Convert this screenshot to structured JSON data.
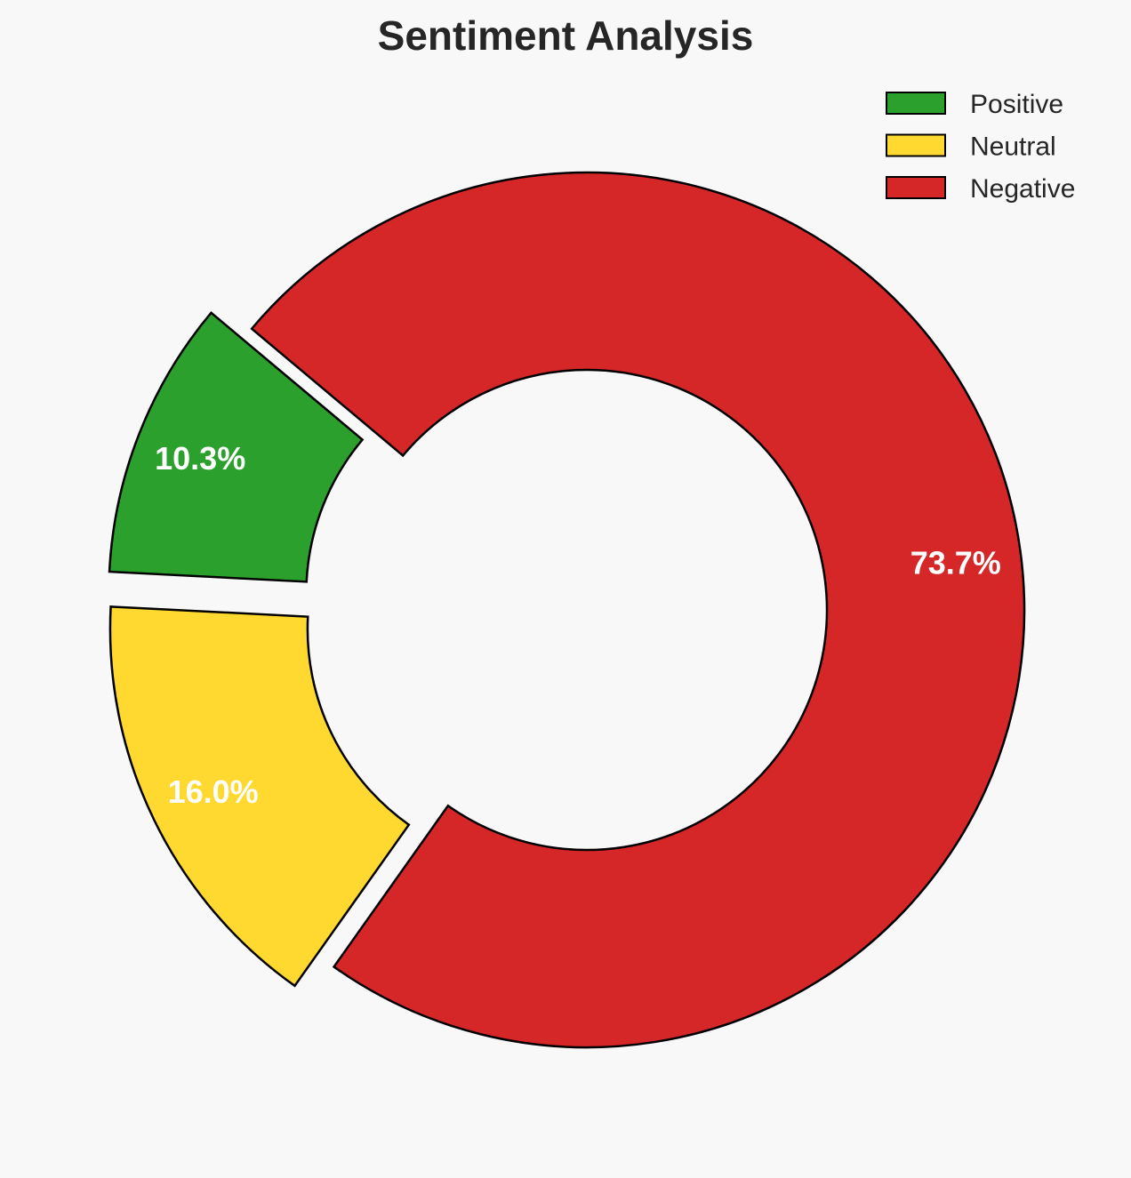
{
  "chart_data": {
    "type": "pie",
    "variant": "donut",
    "title": "Sentiment Analysis",
    "categories": [
      "Positive",
      "Neutral",
      "Negative"
    ],
    "values": [
      10.3,
      16.0,
      73.7
    ],
    "labels": [
      "10.3%",
      "16.0%",
      "73.7%"
    ],
    "colors": [
      "#2ca02c",
      "#ffd92f",
      "#d62728"
    ],
    "exploded": [
      true,
      true,
      false
    ],
    "start_angle_deg": 140,
    "direction": "counterclockwise",
    "edge_color": "#000000",
    "legend": {
      "placement": "top-right",
      "entries": [
        "Positive",
        "Neutral",
        "Negative"
      ]
    },
    "background": "#f8f8f8"
  }
}
